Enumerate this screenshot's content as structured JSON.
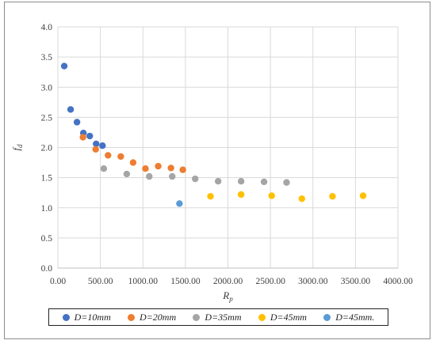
{
  "chart_data": {
    "type": "scatter",
    "title": "",
    "xlabel": "R_p",
    "ylabel": "f_d",
    "xlim": [
      0,
      4000
    ],
    "ylim": [
      0,
      4.0
    ],
    "x_ticks": [
      "0.00",
      "500.00",
      "1000.00",
      "1500.00",
      "2000.00",
      "2500.00",
      "3000.00",
      "3500.00",
      "4000.00"
    ],
    "y_ticks": [
      "0.0",
      "0.5",
      "1.0",
      "1.5",
      "2.0",
      "2.5",
      "3.0",
      "3.5",
      "4.0"
    ],
    "grid": "vertical-and-horizontal",
    "legend_position": "bottom",
    "series": [
      {
        "name": "D=10mm",
        "color": "#4472C4",
        "points": [
          [
            75,
            3.35
          ],
          [
            150,
            2.63
          ],
          [
            225,
            2.42
          ],
          [
            300,
            2.24
          ],
          [
            375,
            2.19
          ],
          [
            450,
            2.06
          ],
          [
            525,
            2.03
          ]
        ]
      },
      {
        "name": "D=20mm",
        "color": "#ED7D31",
        "points": [
          [
            295,
            2.17
          ],
          [
            445,
            1.97
          ],
          [
            590,
            1.87
          ],
          [
            740,
            1.85
          ],
          [
            885,
            1.75
          ],
          [
            1030,
            1.65
          ],
          [
            1180,
            1.69
          ],
          [
            1330,
            1.66
          ],
          [
            1470,
            1.63
          ]
        ]
      },
      {
        "name": "D=35mm",
        "color": "#A5A5A5",
        "points": [
          [
            540,
            1.65
          ],
          [
            810,
            1.56
          ],
          [
            1075,
            1.52
          ],
          [
            1345,
            1.52
          ],
          [
            1615,
            1.48
          ],
          [
            1885,
            1.44
          ],
          [
            2155,
            1.44
          ],
          [
            2425,
            1.43
          ],
          [
            2690,
            1.42
          ]
        ]
      },
      {
        "name": "D=45mm",
        "color": "#FFC000",
        "points": [
          [
            1795,
            1.19
          ],
          [
            2155,
            1.22
          ],
          [
            2515,
            1.2
          ],
          [
            2870,
            1.15
          ],
          [
            3230,
            1.19
          ],
          [
            3590,
            1.2
          ]
        ]
      },
      {
        "name": "D=45mm.",
        "color": "#5B9BD5",
        "points": [
          [
            1430,
            1.07
          ]
        ]
      }
    ]
  }
}
